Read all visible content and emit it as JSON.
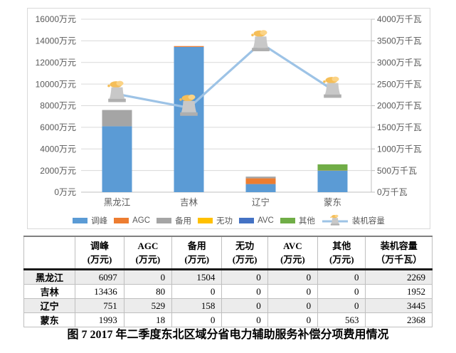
{
  "chart_data": {
    "type": "bar",
    "subtype": "stacked-bars-with-line-overlay",
    "categories": [
      "黑龙江",
      "吉林",
      "辽宁",
      "蒙东"
    ],
    "bar_series": [
      {
        "name": "调峰",
        "color": "#5B9BD5",
        "values": [
          6097,
          13436,
          751,
          1993
        ]
      },
      {
        "name": "AGC",
        "color": "#ED7D31",
        "values": [
          0,
          80,
          529,
          18
        ]
      },
      {
        "name": "备用",
        "color": "#A5A5A5",
        "values": [
          1504,
          0,
          158,
          0
        ]
      },
      {
        "name": "无功",
        "color": "#FFC000",
        "values": [
          0,
          0,
          0,
          0
        ]
      },
      {
        "name": "AVC",
        "color": "#4472C4",
        "values": [
          0,
          0,
          0,
          0
        ]
      },
      {
        "name": "其他",
        "color": "#70AD47",
        "values": [
          0,
          0,
          0,
          563
        ]
      }
    ],
    "line_series": {
      "name": "装机容量",
      "color": "#9DC3E6",
      "marker": "cooling-tower-icon",
      "values": [
        2269,
        1952,
        3445,
        2368
      ]
    },
    "left_axis": {
      "min": 0,
      "max": 16000,
      "step": 2000,
      "unit": "万元"
    },
    "right_axis": {
      "min": 0,
      "max": 4000,
      "step": 500,
      "unit": "万千瓦"
    },
    "legend_position": "bottom",
    "grid": true,
    "grid_color": "#D9D9D9",
    "axis_color": "#BFBFBF",
    "tick_label_color": "#595959"
  },
  "table": {
    "corner_label": "",
    "columns": [
      {
        "title": "调峰",
        "unit": "(万元)"
      },
      {
        "title": "AGC",
        "unit": "(万元)"
      },
      {
        "title": "备用",
        "unit": "(万元)"
      },
      {
        "title": "无功",
        "unit": "(万元)"
      },
      {
        "title": "AVC",
        "unit": "(万元)"
      },
      {
        "title": "其他",
        "unit": "(万元)"
      },
      {
        "title": "装机容量",
        "unit": "（万千瓦）"
      }
    ],
    "rows": [
      {
        "label": "黑龙江",
        "values": [
          "6097",
          "0",
          "1504",
          "0",
          "0",
          "0",
          "2269"
        ]
      },
      {
        "label": "吉林",
        "values": [
          "13436",
          "80",
          "0",
          "0",
          "0",
          "0",
          "1952"
        ]
      },
      {
        "label": "辽宁",
        "values": [
          "751",
          "529",
          "158",
          "0",
          "0",
          "0",
          "3445"
        ]
      },
      {
        "label": "蒙东",
        "values": [
          "1993",
          "18",
          "0",
          "0",
          "0",
          "563",
          "2368"
        ]
      }
    ]
  },
  "caption": "图 7  2017 年二季度东北区域分省电力辅助服务补偿分项费用情况"
}
